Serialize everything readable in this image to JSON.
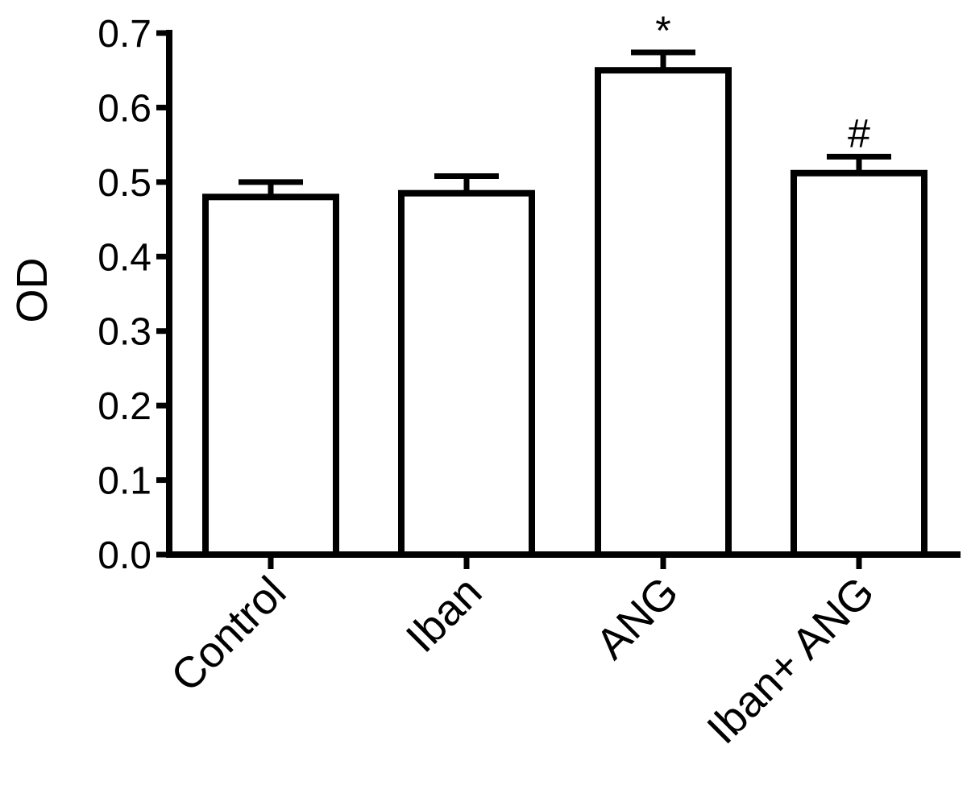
{
  "chart_data": {
    "type": "bar",
    "title": "",
    "xlabel": "",
    "ylabel": "OD",
    "ylim": [
      0,
      0.7
    ],
    "yticks": [
      "0.0",
      "0.1",
      "0.2",
      "0.3",
      "0.4",
      "0.5",
      "0.6",
      "0.7"
    ],
    "categories": [
      "Control",
      "Iban",
      "ANG",
      "Iban+ ANG"
    ],
    "values": [
      0.48,
      0.485,
      0.65,
      0.512
    ],
    "error": [
      0.02,
      0.023,
      0.024,
      0.022
    ],
    "annotations": [
      "",
      "",
      "*",
      "#"
    ],
    "grid": false,
    "legend": "none",
    "bar_fill": "#ffffff",
    "bar_stroke": "#000000"
  }
}
